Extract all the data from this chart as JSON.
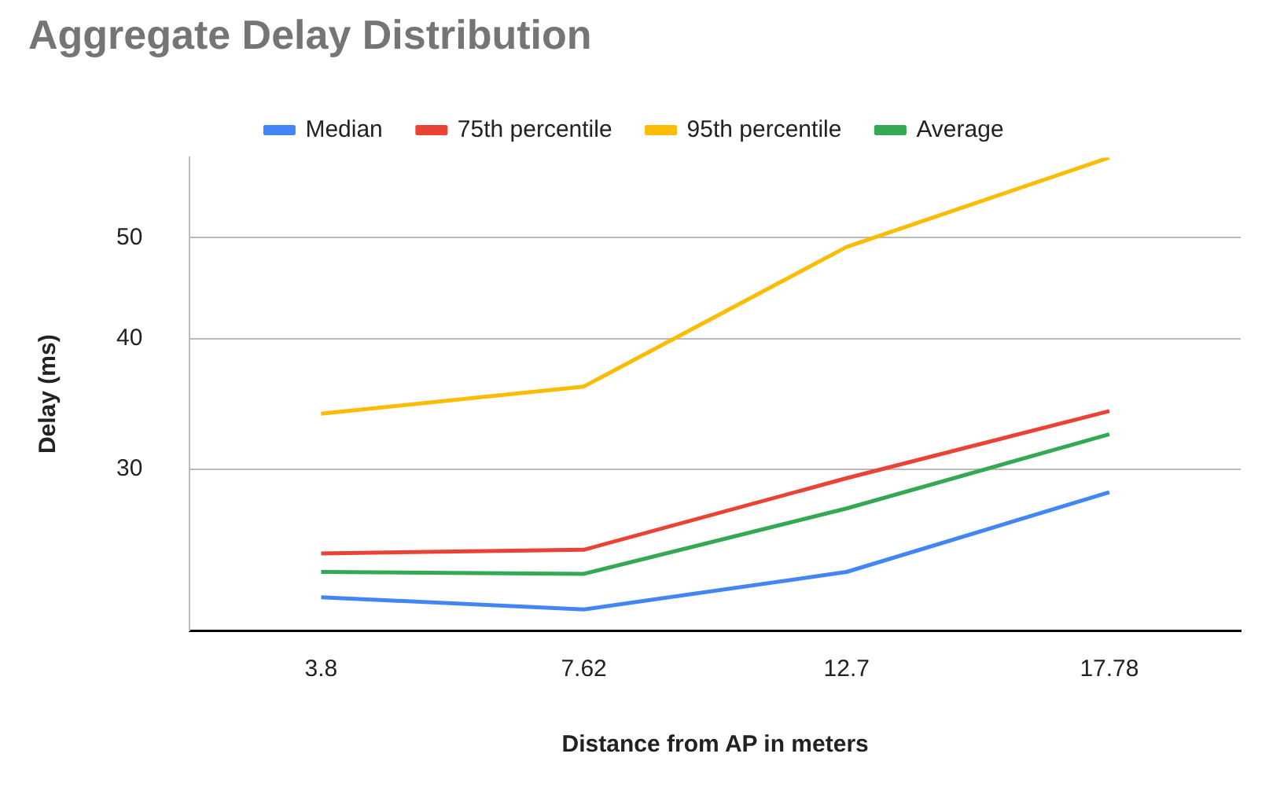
{
  "chart_data": {
    "type": "line",
    "title": "Aggregate Delay Distribution",
    "xlabel": "Distance from AP in meters",
    "ylabel": "Delay (ms)",
    "categories": [
      "3.8",
      "7.62",
      "12.7",
      "17.78"
    ],
    "series": [
      {
        "name": "Median",
        "color": "#4285f4",
        "values": [
          22.6,
          22.0,
          23.9,
          28.5
        ]
      },
      {
        "name": "75th percentile",
        "color": "#ea4335",
        "values": [
          24.9,
          25.1,
          29.4,
          34.1
        ]
      },
      {
        "name": "95th percentile",
        "color": "#fbbc04",
        "values": [
          33.9,
          36.0,
          49.0,
          59.7
        ]
      },
      {
        "name": "Average",
        "color": "#34a853",
        "values": [
          23.9,
          23.8,
          27.5,
          32.4
        ]
      }
    ],
    "ylim": [
      21,
      59.7
    ],
    "yticks": [
      30,
      40,
      50
    ],
    "log": "y",
    "grid": "y",
    "legend": "top",
    "marker": "none",
    "line_style": "solid"
  }
}
